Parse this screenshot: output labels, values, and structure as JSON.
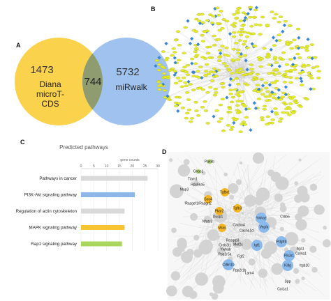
{
  "panels": {
    "a": "A",
    "b": "B",
    "c": "C",
    "d": "D"
  },
  "venn": {
    "left_count": "1473",
    "left_label_lines": [
      "Diana",
      "microT-",
      "CDS"
    ],
    "overlap_count": "744",
    "right_count": "5732",
    "right_label": "miRwalk",
    "left_color": "#fbd24b",
    "right_color": "#9fc3ee",
    "overlap_color": "#8e9c6f"
  },
  "chart_data": {
    "type": "bar",
    "title": "Predicted pathways",
    "xlabel": "gene counts",
    "xlim": [
      0,
      30
    ],
    "xticks": [
      0,
      5,
      10,
      15,
      20,
      25,
      30
    ],
    "categories": [
      "Pathways in cancer",
      "PI3K-Akt signaling pathway",
      "Regulation of actin cytoskeleton",
      "MAPK signaling pathway",
      "Rap1 signaling pathway"
    ],
    "values": [
      26,
      21,
      17,
      17,
      16
    ],
    "colors": [
      "#d9d9d9",
      "#8db7e8",
      "#d9d9d9",
      "#f7c531",
      "#a9d75d"
    ]
  },
  "network_d": {
    "genes": [
      {
        "name": "Pak6b",
        "type": "green"
      },
      {
        "name": "Gnas1",
        "type": "green"
      },
      {
        "name": "Tiam1",
        "type": "text"
      },
      {
        "name": "Rps6ka5",
        "type": "text"
      },
      {
        "name": "Map3",
        "type": "text"
      },
      {
        "name": "Tgfbr1",
        "type": "orange"
      },
      {
        "name": "Sos4",
        "type": "orange"
      },
      {
        "name": "Rasgef1/Rasgrf2",
        "type": "text"
      },
      {
        "name": "Pkar2",
        "type": "orange"
      },
      {
        "name": "Tgfb3",
        "type": "orange"
      },
      {
        "name": "Dusp1",
        "type": "text"
      },
      {
        "name": "Nfatc3",
        "type": "text"
      },
      {
        "name": "Ywhaz",
        "type": "blue"
      },
      {
        "name": "Crbb5",
        "type": "text"
      },
      {
        "name": "Mras",
        "type": "orange"
      },
      {
        "name": "Cacna1d",
        "type": "text"
      },
      {
        "name": "Cacbo4",
        "type": "text"
      },
      {
        "name": "Rasgrp3",
        "type": "text"
      },
      {
        "name": "Vegfa",
        "type": "blue"
      },
      {
        "name": "Mef2c",
        "type": "text"
      },
      {
        "name": "Creb3l1",
        "type": "text"
      },
      {
        "name": "Ywhab",
        "type": "text"
      },
      {
        "name": "Igf1",
        "type": "blue"
      },
      {
        "name": "Pdgfrb",
        "type": "blue"
      },
      {
        "name": "Itga1",
        "type": "text"
      },
      {
        "name": "Pik3r1",
        "type": "blue"
      },
      {
        "name": "Col4a1",
        "type": "text"
      },
      {
        "name": "Fgf2",
        "type": "text"
      },
      {
        "name": "Ppp2r5a",
        "type": "text"
      },
      {
        "name": "Cdkn1b",
        "type": "blue"
      },
      {
        "name": "Kitlg",
        "type": "blue"
      },
      {
        "name": "Itgb10",
        "type": "text"
      },
      {
        "name": "Lam4",
        "type": "text"
      },
      {
        "name": "Ppp2r1b",
        "type": "text"
      },
      {
        "name": "Spp",
        "type": "text"
      },
      {
        "name": "Col1a1",
        "type": "text"
      }
    ]
  }
}
